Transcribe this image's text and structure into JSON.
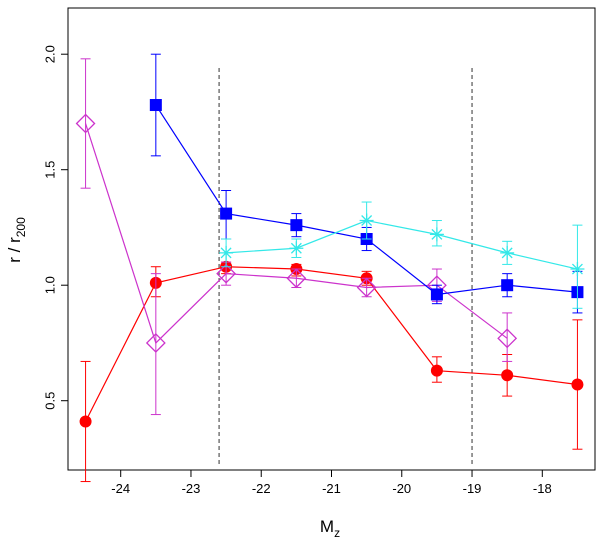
{
  "chart_data": {
    "type": "scatter",
    "xlabel": "M",
    "xlabel_sub": "z",
    "ylabel": "r / r",
    "ylabel_sub": "200",
    "xlim": [
      -24.75,
      -17.25
    ],
    "ylim": [
      0.2,
      2.2
    ],
    "xticks": [
      -24,
      -23,
      -22,
      -21,
      -20,
      -19,
      -18
    ],
    "xtick_labels": [
      "-24",
      "-23",
      "-22",
      "-21",
      "-20",
      "-19",
      "-18"
    ],
    "yticks": [
      0.5,
      1.0,
      1.5,
      2.0
    ],
    "ytick_labels": [
      "0.5",
      "1.0",
      "1.5",
      "2.0"
    ],
    "vlines": [
      -22.6,
      -19.0
    ],
    "vline_ymax": 1.94,
    "series": [
      {
        "name": "red circles",
        "color": "#ff0000",
        "marker": "circle",
        "x": [
          -24.5,
          -23.5,
          -22.5,
          -21.5,
          -20.5,
          -19.5,
          -18.5,
          -17.5
        ],
        "y": [
          0.41,
          1.01,
          1.08,
          1.07,
          1.03,
          0.63,
          0.61,
          0.57
        ],
        "err_low": [
          0.15,
          0.95,
          1.05,
          1.04,
          1.0,
          0.58,
          0.52,
          0.29
        ],
        "err_high": [
          0.67,
          1.08,
          1.1,
          1.09,
          1.06,
          0.69,
          0.7,
          0.85
        ]
      },
      {
        "name": "magenta diamonds",
        "color": "#cc33cc",
        "marker": "diamond",
        "x": [
          -24.5,
          -23.5,
          -22.5,
          -21.5,
          -20.5,
          -19.5,
          -18.5
        ],
        "y": [
          1.7,
          0.75,
          1.05,
          1.03,
          0.99,
          1.0,
          0.77
        ],
        "err_low": [
          1.42,
          0.44,
          1.0,
          0.99,
          0.95,
          0.93,
          0.67
        ],
        "err_high": [
          1.98,
          1.05,
          1.1,
          1.07,
          1.03,
          1.07,
          0.88
        ]
      },
      {
        "name": "blue squares",
        "color": "#0000ff",
        "marker": "square",
        "x": [
          -23.5,
          -22.5,
          -21.5,
          -20.5,
          -19.5,
          -18.5,
          -17.5
        ],
        "y": [
          1.78,
          1.31,
          1.26,
          1.2,
          0.96,
          1.0,
          0.97
        ],
        "err_low": [
          1.56,
          1.2,
          1.21,
          1.15,
          0.92,
          0.95,
          0.88
        ],
        "err_high": [
          2.0,
          1.41,
          1.31,
          1.25,
          1.0,
          1.05,
          1.06
        ]
      },
      {
        "name": "cyan asterisks",
        "color": "#33e8e8",
        "marker": "asterisk",
        "x": [
          -22.5,
          -21.5,
          -20.5,
          -19.5,
          -18.5,
          -17.5
        ],
        "y": [
          1.14,
          1.16,
          1.28,
          1.22,
          1.14,
          1.07
        ],
        "err_low": [
          1.08,
          1.12,
          1.2,
          1.17,
          1.09,
          0.9
        ],
        "err_high": [
          1.2,
          1.2,
          1.36,
          1.28,
          1.19,
          1.26
        ]
      }
    ]
  }
}
